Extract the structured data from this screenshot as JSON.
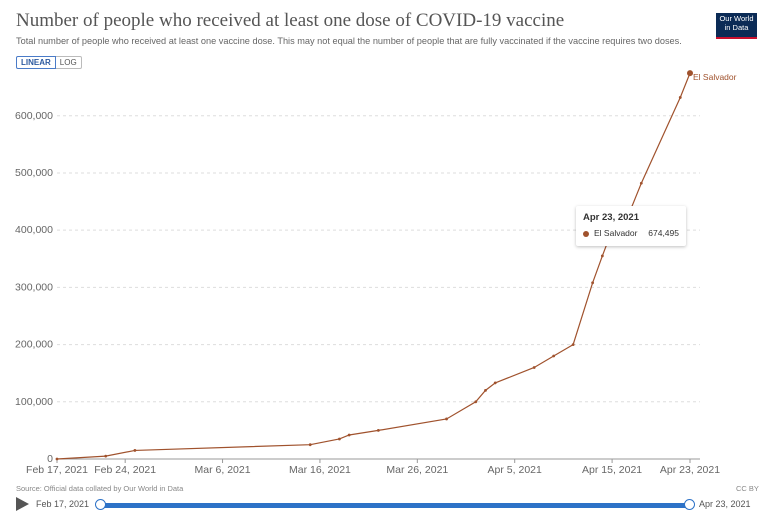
{
  "header": {
    "title": "Number of people who received at least one dose of COVID-19 vaccine",
    "subtitle": "Total number of people who received at least one vaccine dose. This may not equal the number of people that are fully vaccinated if the vaccine requires two doses.",
    "logo_line1": "Our World",
    "logo_line2": "in Data"
  },
  "controls": {
    "linear_label": "LINEAR",
    "log_label": "LOG"
  },
  "tooltip": {
    "date": "Apr 23, 2021",
    "series": "El Salvador",
    "value": "674,495"
  },
  "footer": {
    "source": "Source: Official data collated by Our World in Data",
    "license": "CC BY"
  },
  "timeline": {
    "start": "Feb 17, 2021",
    "end": "Apr 23, 2021"
  },
  "colors": {
    "series": "#a0522d",
    "grid": "#dddddd",
    "accent": "#2d72c7"
  },
  "chart_data": {
    "type": "line",
    "title": "Number of people who received at least one dose of COVID-19 vaccine",
    "ylim": [
      0,
      680000
    ],
    "yticks": [
      0,
      100000,
      200000,
      300000,
      400000,
      500000,
      600000
    ],
    "ytick_labels": [
      "0",
      "100,000",
      "200,000",
      "300,000",
      "400,000",
      "500,000",
      "600,000"
    ],
    "xrange": [
      "2021-02-17",
      "2021-04-23"
    ],
    "xticks": [
      "2021-02-17",
      "2021-02-24",
      "2021-03-06",
      "2021-03-16",
      "2021-03-26",
      "2021-04-05",
      "2021-04-15",
      "2021-04-23"
    ],
    "xtick_labels": [
      "Feb 17, 2021",
      "Feb 24, 2021",
      "Mar 6, 2021",
      "Mar 16, 2021",
      "Mar 26, 2021",
      "Apr 5, 2021",
      "Apr 15, 2021",
      "Apr 23, 2021"
    ],
    "grid": true,
    "series": [
      {
        "name": "El Salvador",
        "color": "#a0522d",
        "points": [
          {
            "x": "2021-02-17",
            "y": 0
          },
          {
            "x": "2021-02-22",
            "y": 5000
          },
          {
            "x": "2021-02-25",
            "y": 15000
          },
          {
            "x": "2021-03-15",
            "y": 25000
          },
          {
            "x": "2021-03-18",
            "y": 35000
          },
          {
            "x": "2021-03-19",
            "y": 42000
          },
          {
            "x": "2021-03-22",
            "y": 50000
          },
          {
            "x": "2021-03-29",
            "y": 70000
          },
          {
            "x": "2021-04-01",
            "y": 100000
          },
          {
            "x": "2021-04-02",
            "y": 120000
          },
          {
            "x": "2021-04-03",
            "y": 133000
          },
          {
            "x": "2021-04-07",
            "y": 160000
          },
          {
            "x": "2021-04-09",
            "y": 180000
          },
          {
            "x": "2021-04-11",
            "y": 200000
          },
          {
            "x": "2021-04-13",
            "y": 308000
          },
          {
            "x": "2021-04-14",
            "y": 355000
          },
          {
            "x": "2021-04-15",
            "y": 400000
          },
          {
            "x": "2021-04-17",
            "y": 440000
          },
          {
            "x": "2021-04-18",
            "y": 482000
          },
          {
            "x": "2021-04-22",
            "y": 632000
          },
          {
            "x": "2021-04-23",
            "y": 674495
          }
        ]
      }
    ]
  }
}
